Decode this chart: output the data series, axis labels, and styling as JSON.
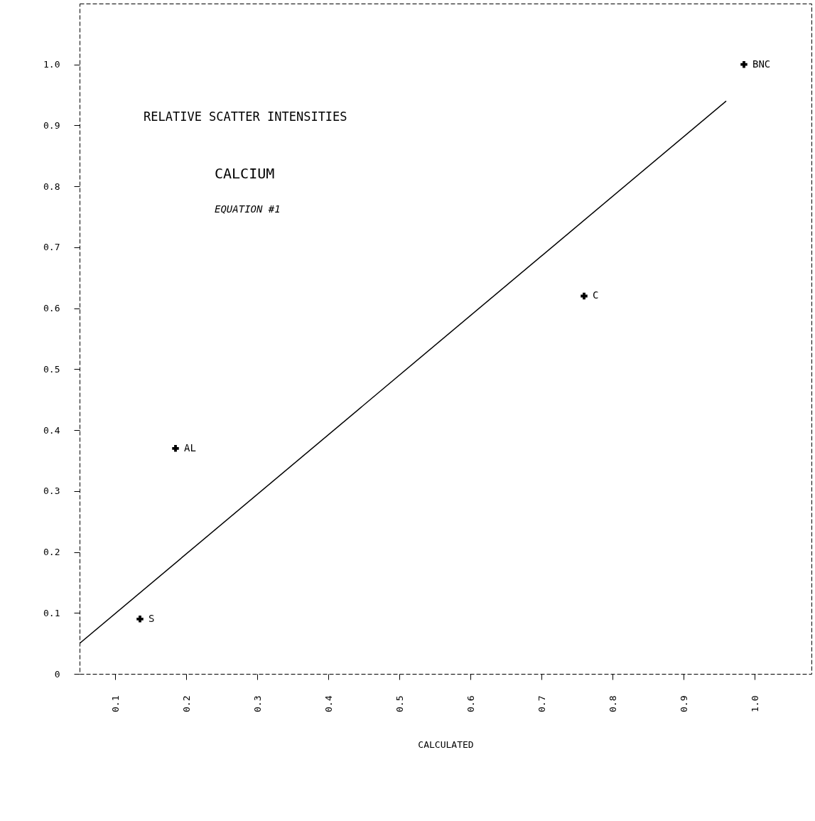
{
  "chart_data": {
    "type": "scatter",
    "xlabel": "CALCULATED",
    "xlim": [
      0.05,
      1.08
    ],
    "ylim": [
      0,
      1.1
    ],
    "xticks": [
      0.1,
      0.2,
      0.3,
      0.4,
      0.5,
      0.6,
      0.7,
      0.8,
      0.9,
      {
        "value": 1,
        "label": "1.0"
      }
    ],
    "yticks": [
      0,
      0.1,
      0.2,
      0.3,
      0.4,
      0.5,
      0.6,
      0.7,
      0.8,
      0.9,
      {
        "value": 1,
        "label": "1.0"
      }
    ],
    "grid": false,
    "series": [
      {
        "marker": "cross",
        "color": "#000000",
        "x": [
          0.135,
          0.185,
          0.76,
          0.985
        ],
        "values": [
          0.09,
          0.37,
          0.62,
          1.0
        ]
      },
      {
        "type": "line",
        "color": "#000000",
        "x": [
          0.05,
          0.96
        ],
        "values": [
          0.05,
          0.94
        ]
      }
    ],
    "annotations": [
      "RELATIVE SCATTER INTENSITIES",
      "CALCIUM",
      "EQUATION #1",
      {
        "text": "S",
        "x": 0.135,
        "y": 0.09
      },
      {
        "text": "AL",
        "x": 0.185,
        "y": 0.37
      },
      {
        "text": "C",
        "x": 0.76,
        "y": 0.62
      },
      {
        "text": "BNC",
        "x": 0.985,
        "y": 1.0
      }
    ]
  }
}
